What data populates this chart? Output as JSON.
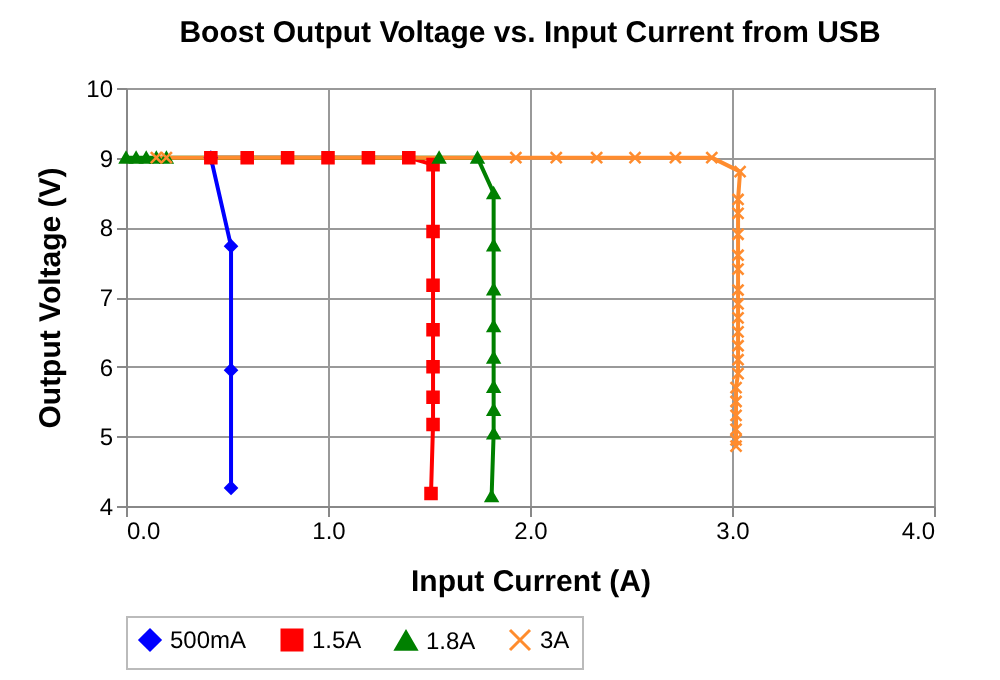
{
  "chart_data": {
    "type": "line",
    "title": "Boost Output Voltage vs. Input Current from USB",
    "xlabel": "Input Current (A)",
    "ylabel": "Output Voltage (V)",
    "xlim": [
      0,
      4
    ],
    "xticks": [
      {
        "value": 0,
        "label": "0.0"
      },
      {
        "value": 1,
        "label": "1.0"
      },
      {
        "value": 2,
        "label": "2.0"
      },
      {
        "value": 3,
        "label": "3.0"
      },
      {
        "value": 4,
        "label": "4.0"
      }
    ],
    "ylim": [
      4,
      10
    ],
    "yticks": [
      4,
      5,
      6,
      7,
      8,
      9,
      10
    ],
    "grid": true,
    "legend": "bottom",
    "line_style": "solid",
    "series": [
      {
        "name": "500mA",
        "color": "#0000ff",
        "marker": "diamond",
        "x": [
          0.42,
          0.52,
          0.52,
          0.52
        ],
        "values": [
          9.0,
          7.73,
          5.95,
          4.26
        ]
      },
      {
        "name": "1.5A",
        "color": "#ff0000",
        "marker": "square",
        "x": [
          0.42,
          0.6,
          0.8,
          1.0,
          1.2,
          1.4,
          1.52,
          1.52,
          1.52,
          1.52,
          1.52,
          1.52,
          1.52,
          1.51
        ],
        "values": [
          9.0,
          9.0,
          9.0,
          9.0,
          9.0,
          9.0,
          8.9,
          7.94,
          7.17,
          6.53,
          6.0,
          5.56,
          5.17,
          4.18
        ]
      },
      {
        "name": "1.8A",
        "color": "#008000",
        "marker": "triangle",
        "x": [
          0,
          0.05,
          0.1,
          0.15,
          0.2,
          1.55,
          1.74,
          1.82,
          1.82,
          1.82,
          1.82,
          1.82,
          1.82,
          1.82,
          1.82,
          1.81
        ],
        "values": [
          9.0,
          9.0,
          9.0,
          9.0,
          9.0,
          9.0,
          9.0,
          8.49,
          7.74,
          7.11,
          6.58,
          6.13,
          5.71,
          5.38,
          5.04,
          4.14
        ]
      },
      {
        "name": "3A",
        "color": "#ff8c2e",
        "marker": "cross",
        "x": [
          0.15,
          0.2,
          1.93,
          2.13,
          2.33,
          2.52,
          2.72,
          2.9,
          3.04,
          3.03,
          3.03,
          3.03,
          3.03,
          3.03,
          3.03,
          3.03,
          3.03,
          3.03,
          3.03,
          3.03,
          3.03,
          3.02,
          3.02,
          3.02,
          3.02,
          3.02,
          3.02
        ],
        "values": [
          9.0,
          9.0,
          9.0,
          9.0,
          9.0,
          9.0,
          9.0,
          9.0,
          8.8,
          8.4,
          8.2,
          7.9,
          7.6,
          7.4,
          7.1,
          6.9,
          6.7,
          6.5,
          6.3,
          6.1,
          5.9,
          5.7,
          5.5,
          5.3,
          5.1,
          4.95,
          4.86
        ]
      }
    ]
  }
}
